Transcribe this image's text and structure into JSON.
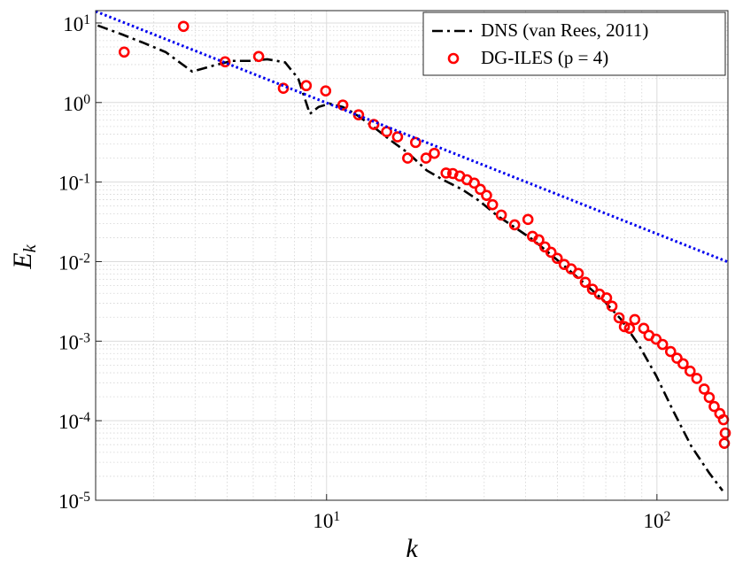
{
  "chart_data": {
    "type": "line",
    "xlabel": "k",
    "ylabel": "E_k",
    "xscale": "log",
    "yscale": "log",
    "xlim": [
      2,
      164
    ],
    "ylim": [
      1e-05,
      14.3
    ],
    "xticks": [
      {
        "value": 10,
        "label": "10^1"
      },
      {
        "value": 100,
        "label": "10^2"
      }
    ],
    "yticks": [
      {
        "value": 1e-05,
        "label": "10^-5"
      },
      {
        "value": 0.0001,
        "label": "10^-4"
      },
      {
        "value": 0.001,
        "label": "10^-3"
      },
      {
        "value": 0.01,
        "label": "10^-2"
      },
      {
        "value": 0.1,
        "label": "10^-1"
      },
      {
        "value": 1,
        "label": "10^0"
      },
      {
        "value": 10,
        "label": "10^1"
      }
    ],
    "grid": true,
    "minor_grid": true,
    "legend": "upper right",
    "series": [
      {
        "name": "DNS (van Rees, 2011)",
        "color": "#000000",
        "style": "dashdot",
        "x": [
          2.03,
          2.4,
          2.8,
          3.26,
          3.92,
          4.58,
          5.18,
          5.85,
          6.62,
          7.49,
          8.21,
          8.9,
          9.46,
          10.2,
          11.2,
          12.2,
          13.9,
          15.7,
          17.7,
          20.1,
          22.7,
          25.7,
          29.0,
          32.8,
          37.1,
          42.0,
          47.5,
          53.7,
          60.7,
          68.7,
          77.7,
          87.9,
          99.4,
          112,
          127,
          144,
          158
        ],
        "values": [
          9.3,
          7.2,
          5.6,
          4.3,
          2.45,
          2.94,
          3.34,
          3.34,
          3.5,
          3.2,
          2.0,
          0.72,
          0.88,
          0.97,
          0.88,
          0.72,
          0.49,
          0.33,
          0.23,
          0.14,
          0.105,
          0.081,
          0.058,
          0.038,
          0.027,
          0.019,
          0.0125,
          0.0081,
          0.0052,
          0.0033,
          0.0019,
          0.00091,
          0.00037,
          0.000133,
          4.8e-05,
          2.2e-05,
          1.32e-05
        ]
      },
      {
        "name": "DG-ILES (p = 4)",
        "color": "#ff0000",
        "style": "circle",
        "x": [
          2.44,
          3.69,
          4.93,
          6.23,
          7.4,
          8.68,
          9.94,
          11.2,
          12.5,
          13.9,
          15.2,
          16.4,
          17.6,
          18.6,
          20.0,
          21.2,
          23.0,
          24.1,
          25.3,
          26.6,
          28.0,
          29.2,
          30.5,
          31.8,
          33.8,
          37.1,
          40.7,
          42.0,
          43.9,
          45.8,
          47.8,
          49.9,
          52.4,
          55.0,
          57.8,
          60.7,
          63.8,
          67.0,
          70.4,
          73.1,
          76.8,
          79.7,
          82.6,
          85.7,
          91.2,
          94.6,
          99.4,
          104,
          110,
          115,
          120,
          126,
          132,
          139,
          144,
          149,
          155,
          159,
          161,
          160
        ],
        "values": [
          4.31,
          9.07,
          3.25,
          3.79,
          1.51,
          1.63,
          1.4,
          0.93,
          0.7,
          0.53,
          0.43,
          0.37,
          0.2,
          0.315,
          0.2,
          0.23,
          0.13,
          0.128,
          0.119,
          0.107,
          0.097,
          0.081,
          0.068,
          0.052,
          0.0385,
          0.029,
          0.0339,
          0.0208,
          0.0188,
          0.0153,
          0.0131,
          0.011,
          0.0092,
          0.0081,
          0.0071,
          0.0055,
          0.0045,
          0.0039,
          0.0035,
          0.00275,
          0.00197,
          0.00152,
          0.00145,
          0.00187,
          0.00145,
          0.00118,
          0.00106,
          0.00091,
          0.00074,
          0.00061,
          0.00052,
          0.00042,
          0.00034,
          0.00025,
          0.000196,
          0.000151,
          0.000123,
          0.000103,
          7e-05,
          5.2e-05
        ]
      },
      {
        "color": "#0000ee",
        "style": "dotted",
        "x": [
          2,
          164
        ],
        "values": [
          14.0,
          0.0099
        ]
      }
    ]
  }
}
